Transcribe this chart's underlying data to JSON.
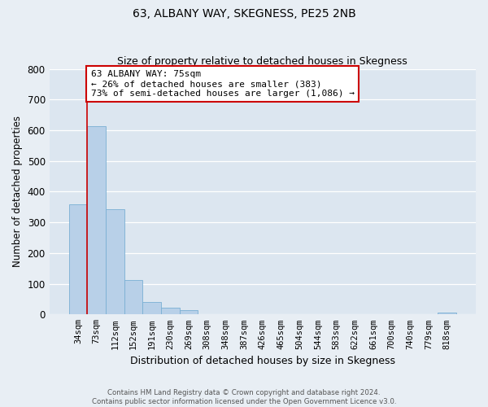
{
  "title": "63, ALBANY WAY, SKEGNESS, PE25 2NB",
  "subtitle": "Size of property relative to detached houses in Skegness",
  "xlabel": "Distribution of detached houses by size in Skegness",
  "ylabel": "Number of detached properties",
  "bar_labels": [
    "34sqm",
    "73sqm",
    "112sqm",
    "152sqm",
    "191sqm",
    "230sqm",
    "269sqm",
    "308sqm",
    "348sqm",
    "387sqm",
    "426sqm",
    "465sqm",
    "504sqm",
    "544sqm",
    "583sqm",
    "622sqm",
    "661sqm",
    "700sqm",
    "740sqm",
    "779sqm",
    "818sqm"
  ],
  "bar_values": [
    358,
    612,
    343,
    113,
    40,
    22,
    14,
    0,
    0,
    0,
    0,
    0,
    0,
    0,
    0,
    0,
    0,
    0,
    0,
    0,
    5
  ],
  "bar_color": "#b8d0e8",
  "bar_edge_color": "#7aafd4",
  "line_color": "#cc0000",
  "annotation_text": "63 ALBANY WAY: 75sqm\n← 26% of detached houses are smaller (383)\n73% of semi-detached houses are larger (1,086) →",
  "annotation_box_color": "#ffffff",
  "annotation_box_edge": "#cc0000",
  "ylim": [
    0,
    800
  ],
  "yticks": [
    0,
    100,
    200,
    300,
    400,
    500,
    600,
    700,
    800
  ],
  "footer_text": "Contains HM Land Registry data © Crown copyright and database right 2024.\nContains public sector information licensed under the Open Government Licence v3.0.",
  "bg_color": "#e8eef4",
  "plot_bg_color": "#dce6f0",
  "title_fontsize": 10,
  "subtitle_fontsize": 9
}
